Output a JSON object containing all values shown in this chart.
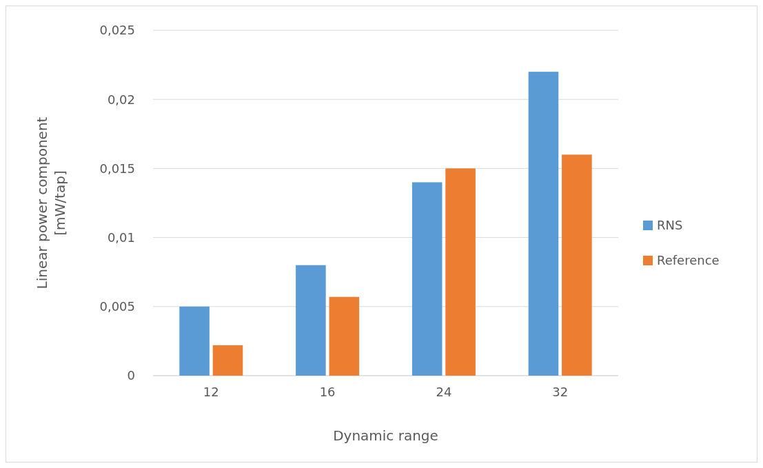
{
  "chart_data": {
    "type": "bar",
    "xlabel": "Dynamic range",
    "ylabel": "Linear power component [mW/tap]",
    "categories": [
      "12",
      "16",
      "24",
      "32"
    ],
    "series": [
      {
        "name": "RNS",
        "color": "#5b9bd5",
        "values": [
          0.005,
          0.008,
          0.014,
          0.022
        ]
      },
      {
        "name": "Reference",
        "color": "#ed7d31",
        "values": [
          0.0022,
          0.0057,
          0.015,
          0.016
        ]
      }
    ],
    "ylim": [
      0,
      0.025
    ],
    "yticks": [
      0,
      {
        "value": 0.005,
        "label": "0,005"
      },
      {
        "value": 0.01,
        "label": "0,01"
      },
      {
        "value": 0.015,
        "label": "0,015"
      },
      {
        "value": 0.02,
        "label": "0,02"
      },
      {
        "value": 0.025,
        "label": "0,025"
      }
    ],
    "grid": "y",
    "legend": "right"
  }
}
